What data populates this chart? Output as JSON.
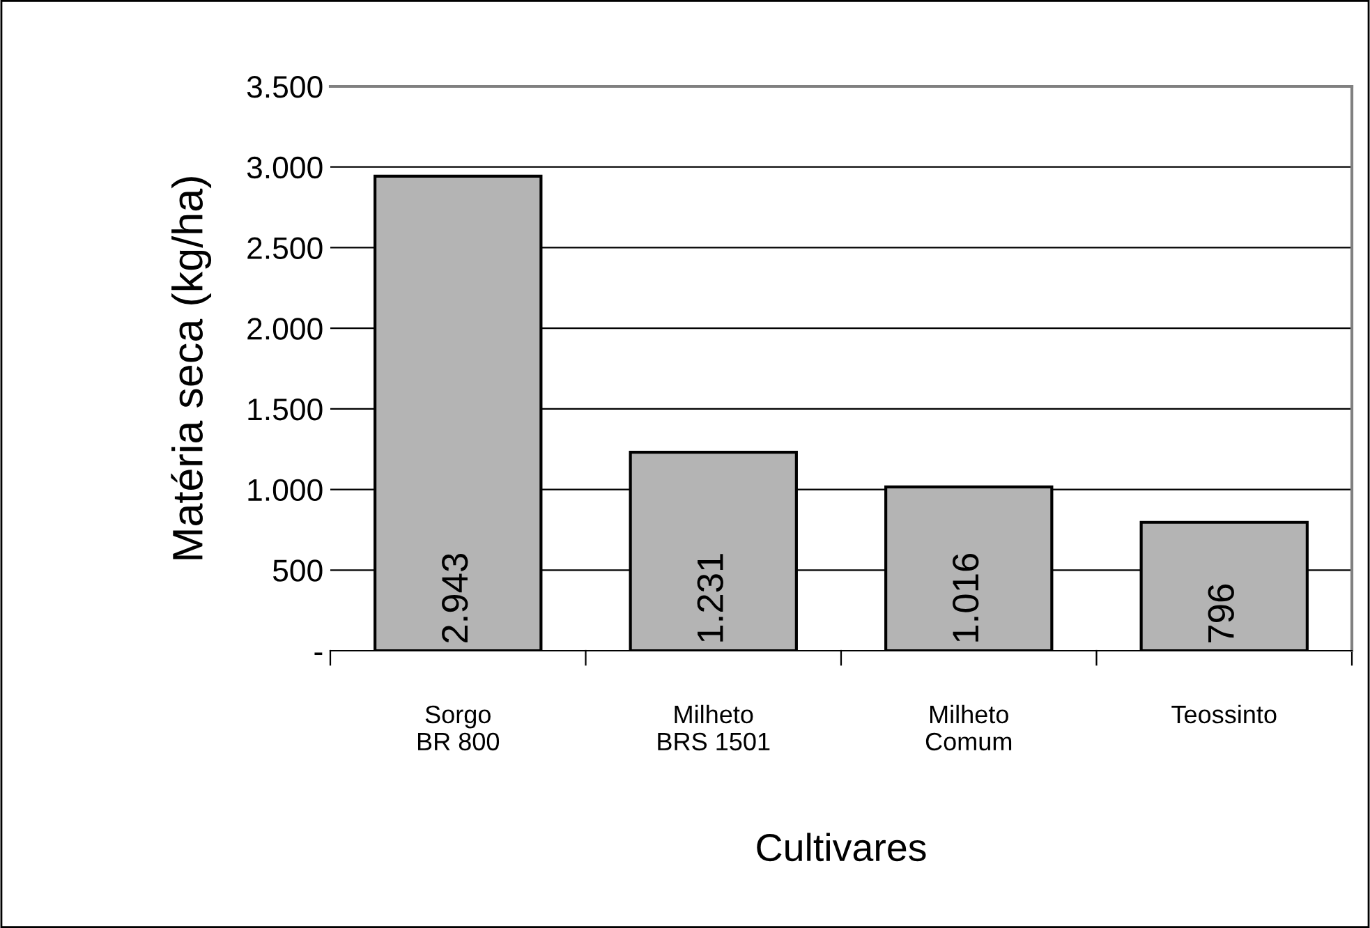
{
  "chart_data": {
    "type": "bar",
    "xlabel": "Cultivares",
    "ylabel": "Matéria seca (kg/ha)",
    "categories": [
      "Sorgo\nBR 800",
      "Milheto\nBRS 1501",
      "Milheto\nComum",
      "Teossinto"
    ],
    "values": [
      2943,
      1231,
      1016,
      796
    ],
    "color": "#b4b4b4",
    "value_labels": [
      "2.943",
      "1.231",
      "1.016",
      "796"
    ],
    "ylim": [
      0,
      3500
    ],
    "yticks": [
      {
        "value": 0,
        "label": "-"
      },
      {
        "value": 500,
        "label": "500"
      },
      {
        "value": 1000,
        "label": "1.000"
      },
      {
        "value": 1500,
        "label": "1.500"
      },
      {
        "value": 2000,
        "label": "2.000"
      },
      {
        "value": 2500,
        "label": "2.500"
      },
      {
        "value": 3000,
        "label": "3.000"
      },
      {
        "value": 3500,
        "label": "3.500"
      }
    ],
    "grid": "y",
    "legend": false
  }
}
